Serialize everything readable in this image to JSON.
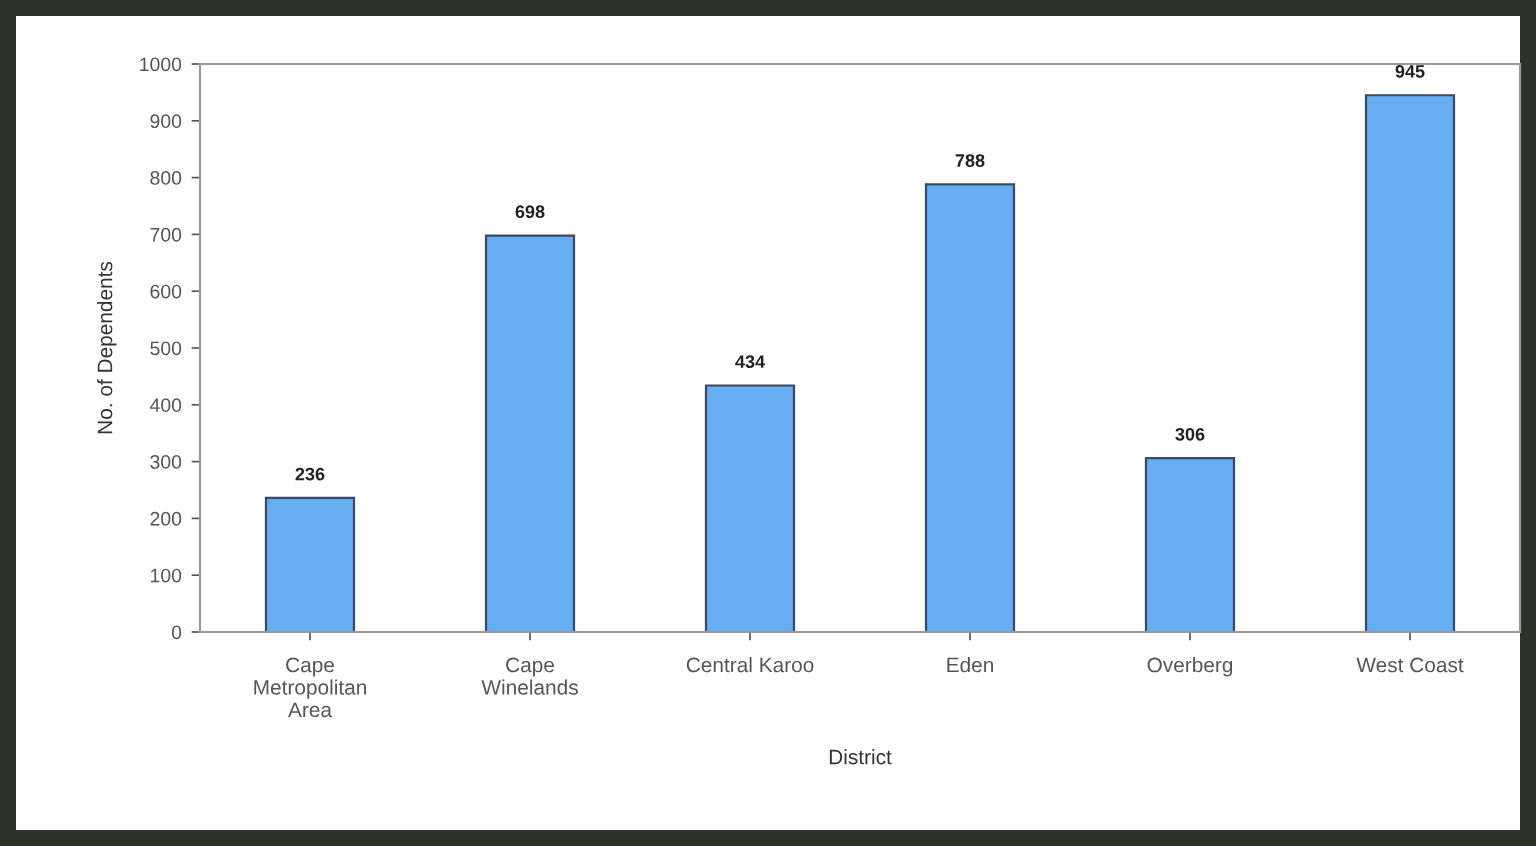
{
  "chart_data": {
    "type": "bar",
    "xlabel": "District",
    "ylabel": "No. of Dependents",
    "categories": [
      "Cape\nMetropolitan\nArea",
      "Cape\nWinelands",
      "Central Karoo",
      "Eden",
      "Overberg",
      "West Coast"
    ],
    "values": [
      236,
      698,
      434,
      788,
      306,
      945
    ],
    "color": "#66adf2",
    "data_labels": true,
    "ylim": [
      0,
      1000
    ],
    "yticks": [
      0,
      100,
      200,
      300,
      400,
      500,
      600,
      700,
      800,
      900,
      1000
    ],
    "grid": false,
    "legend": false
  }
}
